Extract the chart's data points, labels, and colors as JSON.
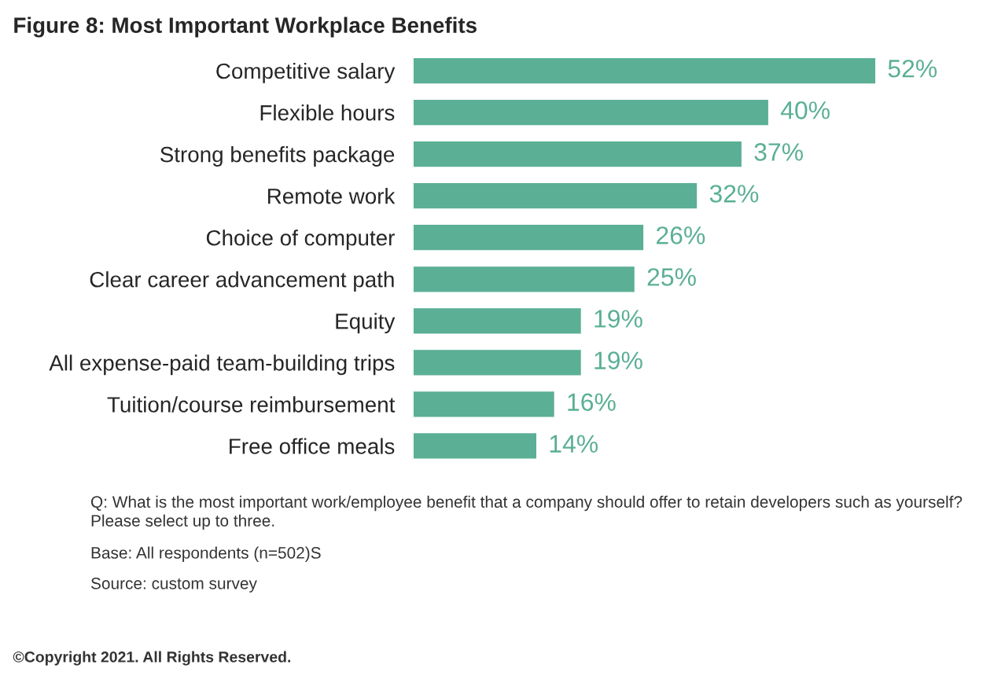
{
  "chart_data": {
    "type": "bar",
    "orientation": "horizontal",
    "title": "Figure 8: Most Important Workplace Benefits",
    "categories": [
      "Competitive salary",
      "Flexible hours",
      "Strong benefits package",
      "Remote work",
      "Choice of computer",
      "Clear career advancement path",
      "Equity",
      "All expense-paid team-building trips",
      "Tuition/course reimbursement",
      "Free office meals"
    ],
    "values": [
      52,
      40,
      37,
      32,
      26,
      25,
      19,
      19,
      16,
      14
    ],
    "value_labels": [
      "52%",
      "40%",
      "37%",
      "32%",
      "26%",
      "25%",
      "19%",
      "19%",
      "16%",
      "14%"
    ],
    "color": "#5aaf95",
    "annotations": [
      "Q: What is the most important work/employee benefit that a company should offer to retain developers such as yourself?\nPlease select up to three.",
      "Base: All respondents (n=502)S",
      "Source: custom survey",
      "©Copyright 2021. All Rights Reserved."
    ],
    "grid": false,
    "legend": false,
    "tick_labels": "y"
  }
}
